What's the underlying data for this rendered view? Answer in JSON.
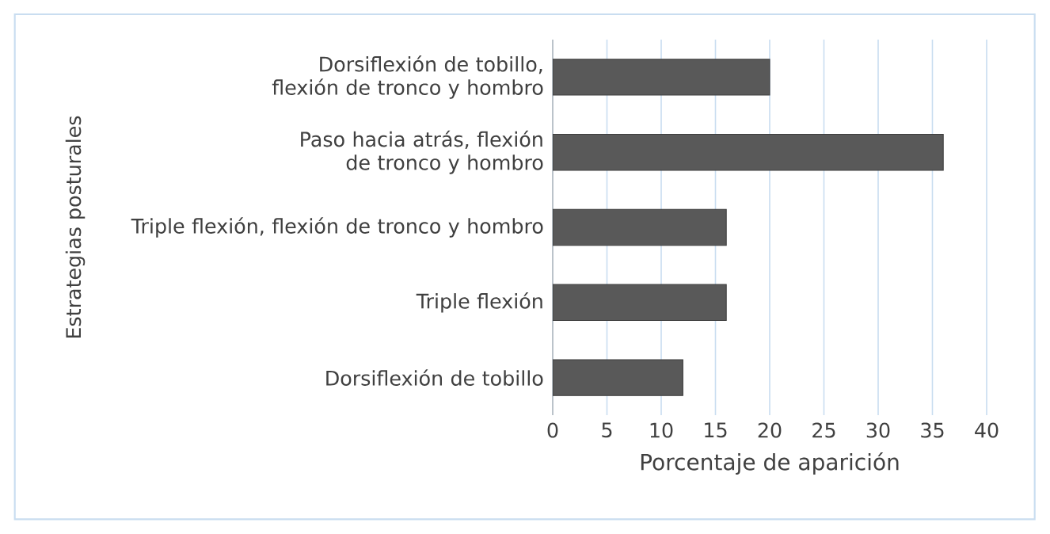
{
  "chart_data": {
    "type": "bar",
    "orientation": "horizontal",
    "ylabel": "Estrategias posturales",
    "xlabel": "Porcentaje de aparición",
    "categories": [
      "Dorsiflexión de tobillo, flexión de tronco y hombro",
      "Paso hacia atrás, flexión de tronco y hombro",
      "Triple flexión, flexión de tronco y hombro",
      "Triple flexión",
      "Dorsiflexión de tobillo"
    ],
    "values": [
      20,
      36,
      16,
      16,
      12
    ],
    "color": "#595959",
    "xlim": [
      0,
      40
    ],
    "xticks": [
      0,
      5,
      10,
      15,
      20,
      25,
      30,
      35,
      40
    ],
    "grid": "x"
  }
}
